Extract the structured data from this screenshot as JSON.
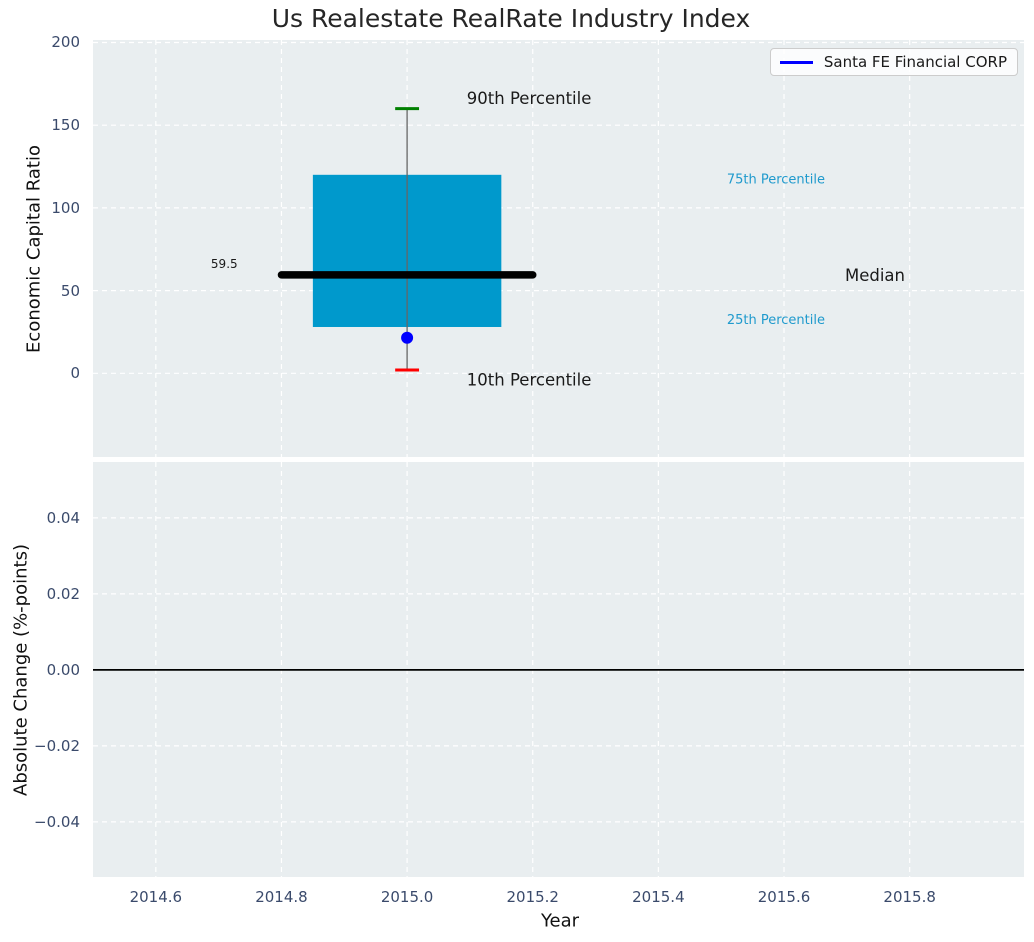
{
  "figure": {
    "title": "Us Realestate RealRate Industry Index",
    "xlabel": "Year",
    "legend": {
      "label": "Santa FE Financial CORP"
    }
  },
  "colors": {
    "axes_background": "#e9eef0",
    "grid": "#ffffff",
    "box_fill": "#0099cc",
    "median_line": "#000000",
    "whisker": "#666666",
    "cap_90th": "#008000",
    "cap_10th": "#ff0000",
    "marker": "#0000ff",
    "legend_line": "#0000ff",
    "zero_line": "#000000",
    "tick_label": "#3a4a6b",
    "percentile_text": "#1f9acd",
    "annotation_text": "#1a1a1a"
  },
  "chart_data": [
    {
      "type": "box",
      "panel": "top",
      "title": "Us Realestate RealRate Industry Index",
      "ylabel": "Economic Capital Ratio",
      "x_center": 2015.0,
      "box": {
        "p90": 160,
        "p75": 120,
        "median": 59.5,
        "p25": 28,
        "p10": 2,
        "box_halfwidth_years": 0.15,
        "median_halfwidth_years": 0.2,
        "cap_halfwidth_years": 0.019
      },
      "marker": {
        "label": "Santa FE Financial CORP",
        "x": 2015.0,
        "y": 21.5
      },
      "xlim": [
        2014.5,
        2015.982
      ],
      "ylim": [
        -50.6,
        201.5
      ],
      "yticks": {
        "values": [
          200,
          150,
          100,
          50,
          0
        ],
        "labels": [
          "200",
          "150",
          "100",
          "50",
          "0"
        ]
      },
      "grid": true,
      "legend": {
        "label": "Santa FE Financial CORP",
        "position": "upper right"
      },
      "annotations": [
        {
          "id": "annotation-90th-percentile",
          "text": "90th Percentile",
          "x": 2015.095,
          "y": 166,
          "color": "#1a1a1a",
          "size": 16.5,
          "anchor": "start"
        },
        {
          "id": "annotation-75th-percentile",
          "text": "75th Percentile",
          "x": 2015.509,
          "y": 117,
          "color": "#1f9acd",
          "size": 13,
          "anchor": "start"
        },
        {
          "id": "annotation-median",
          "text": "Median",
          "x": 2015.697,
          "y": 59,
          "color": "#1a1a1a",
          "size": 16.5,
          "anchor": "start"
        },
        {
          "id": "annotation-25th-percentile",
          "text": "25th Percentile",
          "x": 2015.509,
          "y": 32,
          "color": "#1f9acd",
          "size": 13,
          "anchor": "start"
        },
        {
          "id": "annotation-10th-percentile",
          "text": "10th Percentile",
          "x": 2015.095,
          "y": -4,
          "color": "#1a1a1a",
          "size": 16.5,
          "anchor": "start"
        },
        {
          "id": "annotation-median-value",
          "text": "59.5",
          "x": 2014.709,
          "y": 66,
          "color": "#1a1a1a",
          "size": 12,
          "anchor": "middle"
        }
      ]
    },
    {
      "type": "line",
      "panel": "bottom",
      "ylabel": "Absolute Change (%-points)",
      "xlabel": "Year",
      "xlim": [
        2014.5,
        2015.982
      ],
      "ylim": [
        -0.0545,
        0.0547
      ],
      "yticks": {
        "values": [
          0.04,
          0.02,
          0,
          -0.02,
          -0.04
        ],
        "labels": [
          "0.04",
          "0.02",
          "0.00",
          "−0.02",
          "−0.04"
        ]
      },
      "xticks": {
        "values": [
          2014.6,
          2014.8,
          2015.0,
          2015.2,
          2015.4,
          2015.6,
          2015.8
        ],
        "labels": [
          "2014.6",
          "2014.8",
          "2015.0",
          "2015.2",
          "2015.4",
          "2015.6",
          "2015.8"
        ]
      },
      "zero_line_y": 0.0,
      "grid": true,
      "series": []
    }
  ]
}
